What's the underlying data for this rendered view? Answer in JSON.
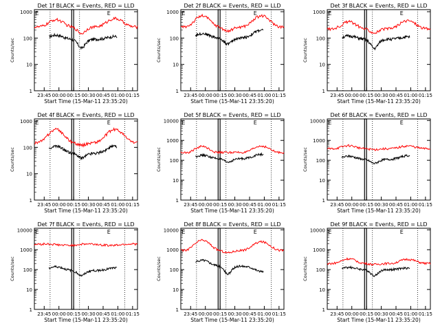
{
  "chart_data": [
    {
      "type": "line",
      "title": "Det 1f BLACK = Events, RED = LLD",
      "xlabel": "Start Time (15-Mar-11 23:35:20)",
      "ylabel": "Counts/sec",
      "x_tick_labels": [
        "23:45",
        "00:00",
        "00:15",
        "00:30",
        "00:45",
        "01:00",
        "01:15"
      ],
      "y_tick_labels": [
        "1",
        "10",
        "100",
        "1000"
      ],
      "yscale": "log",
      "ylim": [
        1,
        1200
      ],
      "xlim_minutes": [
        0,
        105
      ],
      "flags": [
        "E",
        "E"
      ],
      "dotted_lines_minutes": [
        16,
        46,
        92
      ],
      "box_minutes": [
        38,
        40
      ],
      "series": [
        {
          "name": "Events",
          "color": "#000000",
          "start": 15,
          "end": 84,
          "shape": "hump",
          "base": 90,
          "peak1": 130,
          "peak2": 115,
          "dip": 42
        },
        {
          "name": "LLD",
          "color": "#ff0000",
          "start": 0,
          "end": 105,
          "shape": "hump",
          "base": 260,
          "peak1": 500,
          "peak2": 550,
          "dip": 150
        }
      ]
    },
    {
      "type": "line",
      "title": "Det 2f BLACK = Events, RED = LLD",
      "xlabel": "Start Time (15-Mar-11 23:35:20)",
      "ylabel": "Counts/sec",
      "x_tick_labels": [
        "23:45",
        "00:00",
        "00:15",
        "00:30",
        "00:45",
        "01:00",
        "01:15"
      ],
      "y_tick_labels": [
        "1",
        "10",
        "100",
        "1000"
      ],
      "yscale": "log",
      "ylim": [
        1,
        1200
      ],
      "xlim_minutes": [
        0,
        105
      ],
      "flags": [
        "E",
        "E"
      ],
      "dotted_lines_minutes": [
        16,
        46,
        92
      ],
      "box_minutes": [
        38,
        40
      ],
      "series": [
        {
          "name": "Events",
          "color": "#000000",
          "start": 15,
          "end": 84,
          "shape": "hump",
          "base": 100,
          "peak1": 150,
          "peak2": 200,
          "dip": 60
        },
        {
          "name": "LLD",
          "color": "#ff0000",
          "start": 0,
          "end": 105,
          "shape": "hump",
          "base": 260,
          "peak1": 700,
          "peak2": 700,
          "dip": 180
        }
      ]
    },
    {
      "type": "line",
      "title": "Det 3f BLACK = Events, RED = LLD",
      "xlabel": "Start Time (15-Mar-11 23:35:20)",
      "ylabel": "Counts/sec",
      "x_tick_labels": [
        "23:45",
        "00:00",
        "00:15",
        "00:30",
        "00:45",
        "01:00",
        "01:15"
      ],
      "y_tick_labels": [
        "1",
        "10",
        "100",
        "1000"
      ],
      "yscale": "log",
      "ylim": [
        1,
        1200
      ],
      "xlim_minutes": [
        0,
        105
      ],
      "flags": [
        "E",
        "E"
      ],
      "dotted_lines_minutes": [
        16,
        46,
        92
      ],
      "box_minutes": [
        38,
        40
      ],
      "series": [
        {
          "name": "Events",
          "color": "#000000",
          "start": 15,
          "end": 84,
          "shape": "hump",
          "base": 90,
          "peak1": 120,
          "peak2": 110,
          "dip": 40
        },
        {
          "name": "LLD",
          "color": "#ff0000",
          "start": 0,
          "end": 105,
          "shape": "hump",
          "base": 220,
          "peak1": 420,
          "peak2": 460,
          "dip": 160
        }
      ]
    },
    {
      "type": "line",
      "title": "Det 4f BLACK = Events, RED = LLD",
      "xlabel": "Start Time (15-Mar-11 23:35:20)",
      "ylabel": "Counts/sec",
      "x_tick_labels": [
        "23:45",
        "00:00",
        "00:15",
        "00:30",
        "00:45",
        "01:00",
        "01:15"
      ],
      "y_tick_labels": [
        "1",
        "10",
        "100",
        "1000"
      ],
      "yscale": "log",
      "ylim": [
        1,
        1200
      ],
      "xlim_minutes": [
        0,
        105
      ],
      "flags": [
        "E",
        "E"
      ],
      "dotted_lines_minutes": [
        16,
        46,
        92
      ],
      "box_minutes": [
        38,
        40
      ],
      "series": [
        {
          "name": "Events",
          "color": "#000000",
          "start": 15,
          "end": 84,
          "shape": "hump",
          "base": 60,
          "peak1": 110,
          "peak2": 110,
          "dip": 40
        },
        {
          "name": "LLD",
          "color": "#ff0000",
          "start": 0,
          "end": 105,
          "shape": "hump",
          "base": 150,
          "peak1": 480,
          "peak2": 480,
          "dip": 120
        }
      ]
    },
    {
      "type": "line",
      "title": "Det 5f BLACK = Events, RED = LLD",
      "xlabel": "Start Time (15-Mar-11 23:35:20)",
      "ylabel": "Counts/sec",
      "x_tick_labels": [
        "23:45",
        "00:00",
        "00:15",
        "00:30",
        "00:45",
        "01:00",
        "01:15"
      ],
      "y_tick_labels": [
        "1",
        "10",
        "100",
        "1000",
        "10000"
      ],
      "yscale": "log",
      "ylim": [
        1,
        12000
      ],
      "xlim_minutes": [
        0,
        105
      ],
      "flags": [
        "E",
        "E"
      ],
      "dotted_lines_minutes": [
        16,
        46,
        92
      ],
      "box_minutes": [
        38,
        40
      ],
      "series": [
        {
          "name": "Events",
          "color": "#000000",
          "start": 15,
          "end": 84,
          "shape": "hump",
          "base": 120,
          "peak1": 180,
          "peak2": 200,
          "dip": 80
        },
        {
          "name": "LLD",
          "color": "#ff0000",
          "start": 0,
          "end": 105,
          "shape": "hump",
          "base": 230,
          "peak1": 500,
          "peak2": 520,
          "dip": 250
        }
      ]
    },
    {
      "type": "line",
      "title": "Det 6f BLACK = Events, RED = LLD",
      "xlabel": "Start Time (15-Mar-11 23:35:20)",
      "ylabel": "Counts/sec",
      "x_tick_labels": [
        "23:45",
        "00:00",
        "00:15",
        "00:30",
        "00:45",
        "01:00",
        "01:15"
      ],
      "y_tick_labels": [
        "1",
        "10",
        "100",
        "1000",
        "10000"
      ],
      "yscale": "log",
      "ylim": [
        1,
        12000
      ],
      "xlim_minutes": [
        0,
        105
      ],
      "flags": [
        "E",
        "E"
      ],
      "dotted_lines_minutes": [
        16,
        46,
        92
      ],
      "box_minutes": [
        38,
        40
      ],
      "series": [
        {
          "name": "Events",
          "color": "#000000",
          "start": 15,
          "end": 84,
          "shape": "hump",
          "base": 110,
          "peak1": 160,
          "peak2": 170,
          "dip": 70
        },
        {
          "name": "LLD",
          "color": "#ff0000",
          "start": 0,
          "end": 105,
          "shape": "hump",
          "base": 380,
          "peak1": 550,
          "peak2": 530,
          "dip": 350
        }
      ]
    },
    {
      "type": "line",
      "title": "Det 7f BLACK = Events, RED = LLD",
      "xlabel": "Start Time (15-Mar-11 23:35:20)",
      "ylabel": "Counts/sec",
      "x_tick_labels": [
        "23:45",
        "00:00",
        "00:15",
        "00:30",
        "00:45",
        "01:00",
        "01:15"
      ],
      "y_tick_labels": [
        "1",
        "10",
        "100",
        "1000",
        "10000"
      ],
      "yscale": "log",
      "ylim": [
        1,
        12000
      ],
      "xlim_minutes": [
        0,
        105
      ],
      "flags": [
        "E",
        "E"
      ],
      "dotted_lines_minutes": [
        16,
        46,
        92
      ],
      "box_minutes": [
        38,
        40
      ],
      "series": [
        {
          "name": "Events",
          "color": "#000000",
          "start": 15,
          "end": 84,
          "shape": "hump",
          "base": 90,
          "peak1": 140,
          "peak2": 120,
          "dip": 50
        },
        {
          "name": "LLD",
          "color": "#ff0000",
          "start": 0,
          "end": 105,
          "shape": "flat",
          "base": 1800,
          "peak1": 2000,
          "peak2": 2000,
          "dip": 1600
        }
      ]
    },
    {
      "type": "line",
      "title": "Det 8f BLACK = Events, RED = LLD",
      "xlabel": "Start Time (15-Mar-11 23:35:20)",
      "ylabel": "Counts/sec",
      "x_tick_labels": [
        "23:45",
        "00:00",
        "00:15",
        "00:30",
        "00:45",
        "01:00",
        "01:15"
      ],
      "y_tick_labels": [
        "1",
        "10",
        "100",
        "1000",
        "10000"
      ],
      "yscale": "log",
      "ylim": [
        1,
        12000
      ],
      "xlim_minutes": [
        0,
        105
      ],
      "flags": [
        "E",
        "E"
      ],
      "dotted_lines_minutes": [
        16,
        46,
        92
      ],
      "box_minutes": [
        38,
        40
      ],
      "series": [
        {
          "name": "Events",
          "color": "#000000",
          "start": 15,
          "end": 84,
          "shape": "hump",
          "base": 150,
          "peak1": 300,
          "peak2": 80,
          "dip": 60
        },
        {
          "name": "LLD",
          "color": "#ff0000",
          "start": 0,
          "end": 105,
          "shape": "hump",
          "base": 900,
          "peak1": 3000,
          "peak2": 2500,
          "dip": 700
        }
      ]
    },
    {
      "type": "line",
      "title": "Det 9f BLACK = Events, RED = LLD",
      "xlabel": "Start Time (15-Mar-11 23:35:20)",
      "ylabel": "Counts/sec",
      "x_tick_labels": [
        "23:45",
        "00:00",
        "00:15",
        "00:30",
        "00:45",
        "01:00",
        "01:15"
      ],
      "y_tick_labels": [
        "1",
        "10",
        "100",
        "1000",
        "10000"
      ],
      "yscale": "log",
      "ylim": [
        1,
        12000
      ],
      "xlim_minutes": [
        0,
        105
      ],
      "flags": [
        "E",
        "E"
      ],
      "dotted_lines_minutes": [
        16,
        46,
        92
      ],
      "box_minutes": [
        38,
        40
      ],
      "series": [
        {
          "name": "Events",
          "color": "#000000",
          "start": 15,
          "end": 84,
          "shape": "hump",
          "base": 100,
          "peak1": 130,
          "peak2": 120,
          "dip": 50
        },
        {
          "name": "LLD",
          "color": "#ff0000",
          "start": 0,
          "end": 105,
          "shape": "hump",
          "base": 200,
          "peak1": 350,
          "peak2": 330,
          "dip": 180
        }
      ]
    }
  ]
}
